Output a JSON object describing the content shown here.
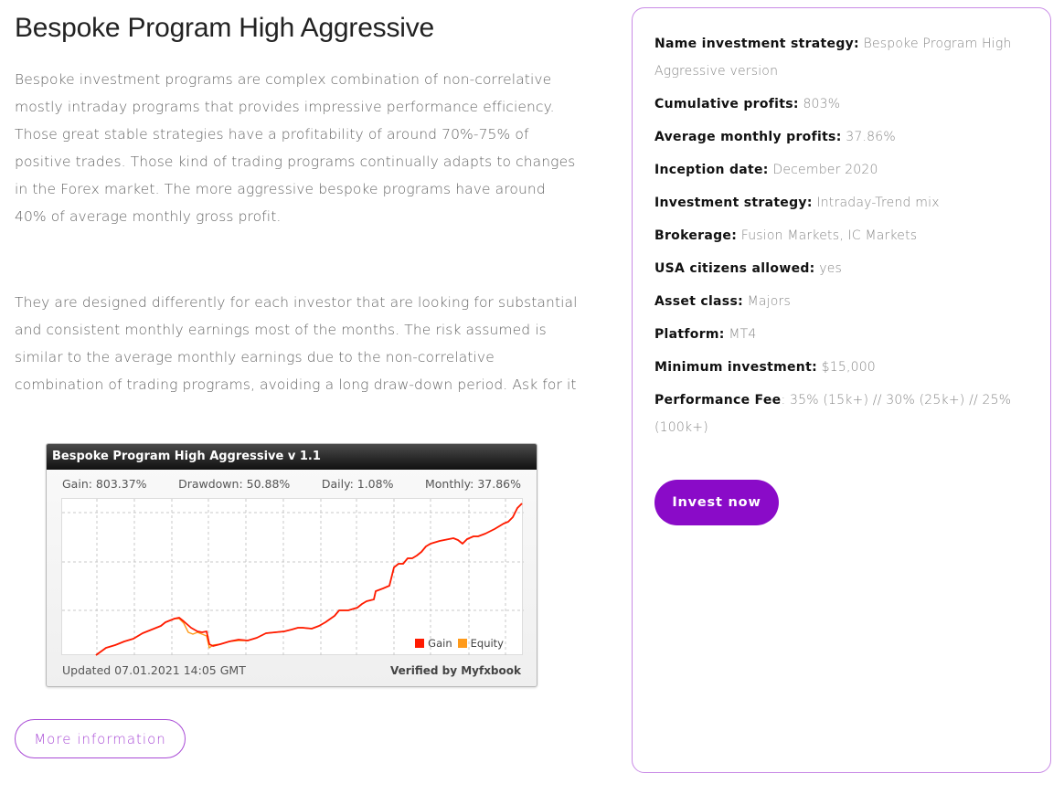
{
  "page": {
    "title": "Bespoke Program High Aggressive",
    "paragraphs": [
      "Bespoke investment programs are complex combination of non-correlative mostly intraday programs that provides impressive performance efficiency. Those great stable strategies have a profitability of around 70%-75% of positive trades. Those kind of trading programs continually adapts to changes in the Forex market. The more aggressive bespoke programs have around 40% of average monthly gross profit.",
      "They are designed differently for each investor that are looking for substantial and consistent monthly earnings most of the months. The risk assumed is similar to the average monthly earnings due to the non-correlative combination of trading programs, avoiding a long draw-down period. Ask for it"
    ],
    "more_info_label": "More information"
  },
  "widget": {
    "title": "Bespoke Program High Aggressive v 1.1",
    "stats": {
      "gain": "Gain: 803.37%",
      "drawdown": "Drawdown: 50.88%",
      "daily": "Daily: 1.08%",
      "monthly": "Monthly: 37.86%"
    },
    "legend": {
      "gain_label": "Gain",
      "equity_label": "Equity",
      "gain_color": "#ff1a00",
      "equity_color": "#ff9a1a"
    },
    "updated": "Updated 07.01.2021 14:05 GMT",
    "verified": "Verified by Myfxbook"
  },
  "chart_data": {
    "type": "line",
    "title": "Bespoke Program High Aggressive v 1.1",
    "xlabel": "",
    "ylabel": "",
    "grid": true,
    "legend_position": "bottom-right",
    "series": [
      {
        "name": "Gain",
        "color": "#ff1a00",
        "points": [
          [
            37,
            171
          ],
          [
            48,
            163
          ],
          [
            58,
            160
          ],
          [
            68,
            156
          ],
          [
            78,
            153
          ],
          [
            88,
            147
          ],
          [
            98,
            143
          ],
          [
            108,
            139
          ],
          [
            113,
            135
          ],
          [
            123,
            131
          ],
          [
            128,
            130
          ],
          [
            133,
            134
          ],
          [
            141,
            141
          ],
          [
            148,
            145
          ],
          [
            153,
            146
          ],
          [
            158,
            145
          ],
          [
            161,
            159
          ],
          [
            165,
            161
          ],
          [
            173,
            159
          ],
          [
            183,
            156
          ],
          [
            193,
            154
          ],
          [
            203,
            155
          ],
          [
            213,
            152
          ],
          [
            223,
            147
          ],
          [
            233,
            146
          ],
          [
            243,
            145
          ],
          [
            251,
            143
          ],
          [
            258,
            141
          ],
          [
            263,
            141
          ],
          [
            273,
            142
          ],
          [
            281,
            139
          ],
          [
            288,
            135
          ],
          [
            298,
            128
          ],
          [
            303,
            122
          ],
          [
            313,
            122
          ],
          [
            323,
            119
          ],
          [
            328,
            115
          ],
          [
            333,
            112
          ],
          [
            341,
            110
          ],
          [
            343,
            101
          ],
          [
            351,
            98
          ],
          [
            358,
            95
          ],
          [
            363,
            75
          ],
          [
            368,
            71
          ],
          [
            373,
            71
          ],
          [
            378,
            65
          ],
          [
            383,
            65
          ],
          [
            388,
            62
          ],
          [
            393,
            58
          ],
          [
            398,
            52
          ],
          [
            403,
            49
          ],
          [
            413,
            46
          ],
          [
            423,
            44
          ],
          [
            428,
            43
          ],
          [
            433,
            45
          ],
          [
            438,
            49
          ],
          [
            443,
            44
          ],
          [
            450,
            41
          ],
          [
            455,
            41
          ],
          [
            463,
            38
          ],
          [
            473,
            33
          ],
          [
            483,
            27
          ],
          [
            488,
            25
          ],
          [
            493,
            20
          ],
          [
            498,
            10
          ],
          [
            503,
            5
          ]
        ]
      },
      {
        "name": "Equity",
        "color": "#ff9a1a",
        "points": [
          [
            37,
            171
          ],
          [
            48,
            163
          ],
          [
            58,
            160
          ],
          [
            68,
            156
          ],
          [
            78,
            153
          ],
          [
            88,
            147
          ],
          [
            98,
            143
          ],
          [
            108,
            139
          ],
          [
            113,
            135
          ],
          [
            123,
            131
          ],
          [
            128,
            131
          ],
          [
            133,
            136
          ],
          [
            138,
            146
          ],
          [
            143,
            148
          ],
          [
            148,
            146
          ],
          [
            153,
            148
          ],
          [
            158,
            150
          ],
          [
            161,
            163
          ],
          [
            165,
            160
          ],
          [
            173,
            159
          ],
          [
            183,
            156
          ],
          [
            193,
            155
          ],
          [
            203,
            155
          ],
          [
            213,
            152
          ],
          [
            223,
            147
          ],
          [
            233,
            146
          ],
          [
            243,
            145
          ],
          [
            251,
            143
          ],
          [
            258,
            141
          ],
          [
            263,
            141
          ],
          [
            273,
            142
          ],
          [
            281,
            139
          ],
          [
            288,
            135
          ],
          [
            298,
            128
          ],
          [
            303,
            122
          ],
          [
            313,
            122
          ],
          [
            323,
            119
          ],
          [
            328,
            115
          ],
          [
            333,
            112
          ],
          [
            341,
            110
          ],
          [
            343,
            101
          ],
          [
            351,
            98
          ],
          [
            358,
            95
          ],
          [
            363,
            75
          ],
          [
            368,
            71
          ],
          [
            373,
            71
          ],
          [
            378,
            65
          ],
          [
            383,
            65
          ],
          [
            388,
            62
          ],
          [
            393,
            58
          ],
          [
            398,
            52
          ],
          [
            403,
            49
          ],
          [
            413,
            46
          ],
          [
            423,
            44
          ],
          [
            428,
            43
          ],
          [
            433,
            45
          ],
          [
            438,
            49
          ],
          [
            443,
            44
          ],
          [
            450,
            41
          ],
          [
            455,
            41
          ],
          [
            463,
            38
          ],
          [
            473,
            33
          ],
          [
            483,
            27
          ],
          [
            488,
            25
          ],
          [
            493,
            20
          ],
          [
            498,
            10
          ],
          [
            503,
            5
          ]
        ]
      }
    ],
    "annotations": [
      "Gain: 803.37%",
      "Drawdown: 50.88%",
      "Daily: 1.08%",
      "Monthly: 37.86%"
    ]
  },
  "card": {
    "rows": [
      {
        "label": "Name investment strategy:",
        "value": " Bespoke Program High Aggressive version"
      },
      {
        "label": "Cumulative profits:",
        "value": " 803%"
      },
      {
        "label": "Average monthly profits:",
        "value": "  37.86%"
      },
      {
        "label": "Inception date:",
        "value": " December 2020"
      },
      {
        "label": "Investment strategy:",
        "value": " Intraday-Trend mix"
      },
      {
        "label": "Brokerage:",
        "value": " Fusion Markets, IC Markets"
      },
      {
        "label": "USA citizens allowed:",
        "value": " yes"
      },
      {
        "label": "Asset class:",
        "value": " Majors"
      },
      {
        "label": "Platform:",
        "value": " MT4"
      },
      {
        "label": "Minimum investment:",
        "value": " $15,000"
      },
      {
        "label": "Performance Fee",
        "value": ":  35% (15k+) // 30% (25k+) // 25% (100k+)"
      }
    ],
    "invest_label": "Invest now",
    "accent_color": "#8a0bc8",
    "border_color": "#c98be6"
  }
}
